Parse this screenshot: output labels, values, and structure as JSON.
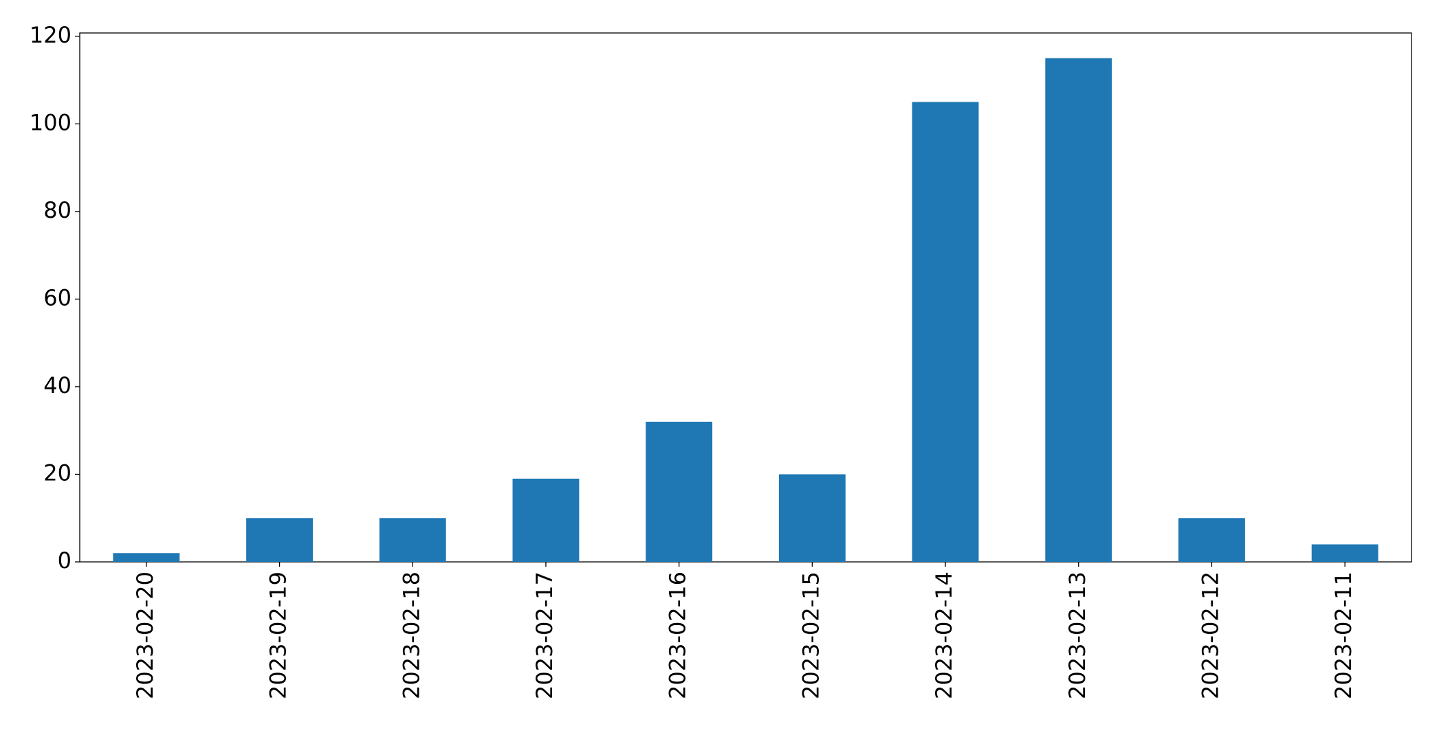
{
  "chart_data": {
    "type": "bar",
    "categories": [
      "2023-02-20",
      "2023-02-19",
      "2023-02-18",
      "2023-02-17",
      "2023-02-16",
      "2023-02-15",
      "2023-02-14",
      "2023-02-13",
      "2023-02-12",
      "2023-02-11"
    ],
    "values": [
      2,
      10,
      10,
      19,
      32,
      20,
      105,
      115,
      10,
      4
    ],
    "color": "#1f77b4",
    "ylim": [
      0,
      120.75
    ],
    "yticks": [
      0,
      20,
      40,
      60,
      80,
      100,
      120
    ],
    "grid": false
  }
}
